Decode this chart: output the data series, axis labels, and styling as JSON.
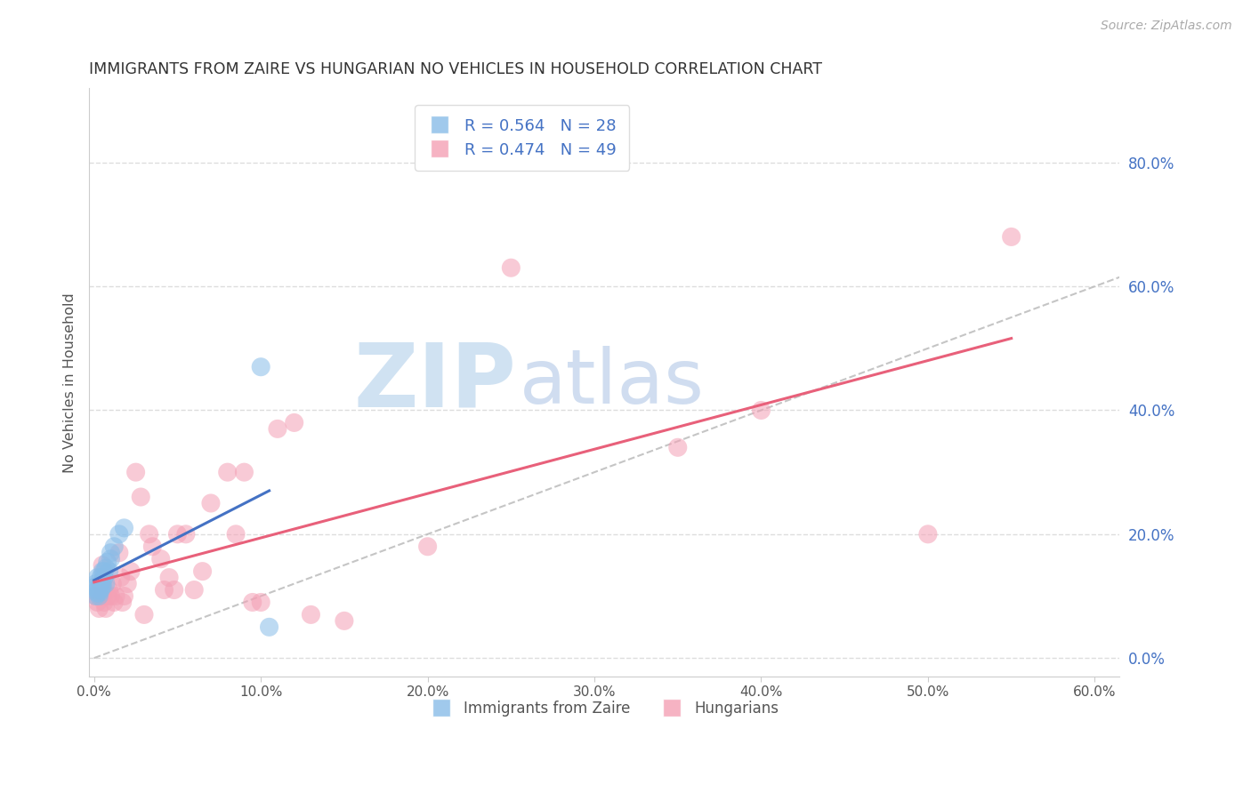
{
  "title": "IMMIGRANTS FROM ZAIRE VS HUNGARIAN NO VEHICLES IN HOUSEHOLD CORRELATION CHART",
  "source": "Source: ZipAtlas.com",
  "ylabel": "No Vehicles in Household",
  "legend_entries": [
    "Immigrants from Zaire",
    "Hungarians"
  ],
  "r_zaire": 0.564,
  "n_zaire": 28,
  "r_hungarian": 0.474,
  "n_hungarian": 49,
  "xlim": [
    -0.003,
    0.615
  ],
  "ylim": [
    -0.03,
    0.92
  ],
  "right_yticks": [
    0.0,
    0.2,
    0.4,
    0.6,
    0.8
  ],
  "right_yticklabels": [
    "0.0%",
    "20.0%",
    "40.0%",
    "60.0%",
    "80.0%"
  ],
  "xticks": [
    0.0,
    0.1,
    0.2,
    0.3,
    0.4,
    0.5,
    0.6
  ],
  "xticklabels": [
    "0.0%",
    "10.0%",
    "20.0%",
    "30.0%",
    "40.0%",
    "50.0%",
    "60.0%"
  ],
  "color_zaire": "#88bce8",
  "color_hungarian": "#f4a0b5",
  "color_line_zaire": "#4472c4",
  "color_line_hungarian": "#e8607a",
  "color_diagonal": "#bbbbbb",
  "color_right_axis": "#4472c4",
  "scatter_zaire_x": [
    0.0005,
    0.001,
    0.001,
    0.002,
    0.002,
    0.002,
    0.003,
    0.003,
    0.003,
    0.004,
    0.004,
    0.004,
    0.005,
    0.005,
    0.005,
    0.006,
    0.006,
    0.007,
    0.007,
    0.008,
    0.009,
    0.01,
    0.01,
    0.012,
    0.015,
    0.018,
    0.1,
    0.105
  ],
  "scatter_zaire_y": [
    0.115,
    0.1,
    0.12,
    0.105,
    0.11,
    0.13,
    0.1,
    0.105,
    0.115,
    0.11,
    0.12,
    0.13,
    0.12,
    0.115,
    0.14,
    0.13,
    0.14,
    0.145,
    0.12,
    0.155,
    0.14,
    0.16,
    0.17,
    0.18,
    0.2,
    0.21,
    0.47,
    0.05
  ],
  "scatter_hungarian_x": [
    0.001,
    0.002,
    0.003,
    0.004,
    0.005,
    0.005,
    0.006,
    0.007,
    0.008,
    0.009,
    0.01,
    0.011,
    0.012,
    0.013,
    0.015,
    0.016,
    0.017,
    0.018,
    0.02,
    0.022,
    0.025,
    0.028,
    0.03,
    0.033,
    0.035,
    0.04,
    0.042,
    0.045,
    0.048,
    0.05,
    0.055,
    0.06,
    0.065,
    0.07,
    0.08,
    0.085,
    0.09,
    0.095,
    0.1,
    0.11,
    0.12,
    0.13,
    0.15,
    0.2,
    0.25,
    0.35,
    0.4,
    0.5,
    0.55
  ],
  "scatter_hungarian_y": [
    0.1,
    0.09,
    0.08,
    0.12,
    0.1,
    0.15,
    0.09,
    0.08,
    0.1,
    0.11,
    0.1,
    0.12,
    0.09,
    0.1,
    0.17,
    0.13,
    0.09,
    0.1,
    0.12,
    0.14,
    0.3,
    0.26,
    0.07,
    0.2,
    0.18,
    0.16,
    0.11,
    0.13,
    0.11,
    0.2,
    0.2,
    0.11,
    0.14,
    0.25,
    0.3,
    0.2,
    0.3,
    0.09,
    0.09,
    0.37,
    0.38,
    0.07,
    0.06,
    0.18,
    0.63,
    0.34,
    0.4,
    0.2,
    0.68
  ],
  "background_color": "#ffffff",
  "grid_color": "#dddddd",
  "watermark_zip_color": "#c8ddf0",
  "watermark_atlas_color": "#b8cce8"
}
